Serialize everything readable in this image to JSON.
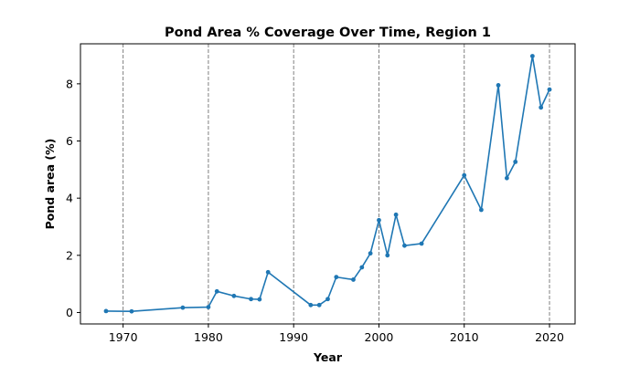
{
  "chart_data": {
    "type": "line",
    "title": "Pond Area % Coverage Over Time, Region 1",
    "xlabel": "Year",
    "ylabel": "Pond area (%)",
    "xlim": [
      1965,
      2023
    ],
    "ylim": [
      -0.4,
      9.4
    ],
    "xticks": [
      1970,
      1980,
      1990,
      2000,
      2010,
      2020
    ],
    "yticks": [
      0,
      2,
      4,
      6,
      8
    ],
    "grid": "vertical dashed at x ticks",
    "legend": "none",
    "series": [
      {
        "color": "#1f77b4",
        "marker": "circle",
        "x": [
          1968,
          1971,
          1977,
          1980,
          1981,
          1983,
          1985,
          1986,
          1987,
          1992,
          1993,
          1994,
          1995,
          1997,
          1998,
          1999,
          2000,
          2001,
          2002,
          2003,
          2005,
          2010,
          2012,
          2014,
          2015,
          2016,
          2018,
          2019,
          2020
        ],
        "y": [
          0.05,
          0.04,
          0.17,
          0.19,
          0.74,
          0.58,
          0.47,
          0.46,
          1.41,
          0.26,
          0.26,
          0.47,
          1.24,
          1.15,
          1.58,
          2.07,
          3.23,
          2.0,
          3.42,
          2.34,
          2.41,
          4.8,
          3.59,
          7.95,
          4.7,
          5.27,
          8.97,
          7.17,
          7.8
        ]
      }
    ]
  }
}
